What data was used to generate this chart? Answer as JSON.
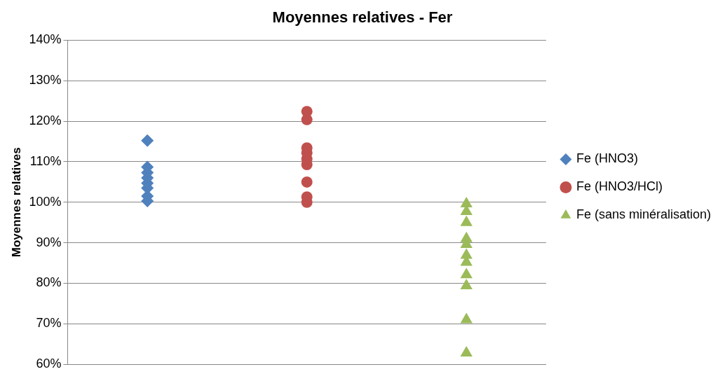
{
  "chart_data": {
    "type": "scatter",
    "title": "Moyennes relatives - Fer",
    "ylabel": "Moyennes relatives",
    "categories": [
      null,
      null,
      null
    ],
    "ylim": [
      0.6,
      1.4
    ],
    "yticks": [
      {
        "value": 0.6,
        "label": "60%"
      },
      {
        "value": 0.7,
        "label": "70%"
      },
      {
        "value": 0.8,
        "label": "80%"
      },
      {
        "value": 0.9,
        "label": "90%"
      },
      {
        "value": 1.0,
        "label": "100%"
      },
      {
        "value": 1.1,
        "label": "110%"
      },
      {
        "value": 1.2,
        "label": "120%"
      },
      {
        "value": 1.3,
        "label": "130%"
      },
      {
        "value": 1.4,
        "label": "140%"
      }
    ],
    "tick_labels": "y",
    "grid": "y",
    "legend": "right",
    "series": [
      {
        "name": "Fe (HNO3)",
        "color": "#4f81bd",
        "marker": "diamond",
        "values": [
          1.152,
          null,
          null
        ]
      },
      {
        "color": "#4f81bd",
        "marker": "diamond",
        "values": [
          1.087,
          null,
          null
        ]
      },
      {
        "color": "#4f81bd",
        "marker": "diamond",
        "values": [
          1.073,
          null,
          null
        ]
      },
      {
        "color": "#4f81bd",
        "marker": "diamond",
        "values": [
          1.06,
          null,
          null
        ]
      },
      {
        "color": "#4f81bd",
        "marker": "diamond",
        "values": [
          1.047,
          null,
          null
        ]
      },
      {
        "color": "#4f81bd",
        "marker": "diamond",
        "values": [
          1.035,
          null,
          null
        ]
      },
      {
        "color": "#4f81bd",
        "marker": "diamond",
        "values": [
          1.015,
          null,
          null
        ]
      },
      {
        "color": "#4f81bd",
        "marker": "diamond",
        "values": [
          1.003,
          null,
          null
        ]
      },
      {
        "name": "Fe (HNO3/HCl)",
        "color": "#c0504d",
        "marker": "circle",
        "values": [
          null,
          1.224,
          null
        ]
      },
      {
        "color": "#c0504d",
        "marker": "circle",
        "values": [
          null,
          1.204,
          null
        ]
      },
      {
        "color": "#c0504d",
        "marker": "circle",
        "values": [
          null,
          1.134,
          null
        ]
      },
      {
        "color": "#c0504d",
        "marker": "circle",
        "values": [
          null,
          1.122,
          null
        ]
      },
      {
        "color": "#c0504d",
        "marker": "circle",
        "values": [
          null,
          1.107,
          null
        ]
      },
      {
        "color": "#c0504d",
        "marker": "circle",
        "values": [
          null,
          1.093,
          null
        ]
      },
      {
        "color": "#c0504d",
        "marker": "circle",
        "values": [
          null,
          1.05,
          null
        ]
      },
      {
        "color": "#c0504d",
        "marker": "circle",
        "values": [
          null,
          1.013,
          null
        ]
      },
      {
        "color": "#c0504d",
        "marker": "circle",
        "values": [
          null,
          1.0,
          null
        ]
      },
      {
        "name": "Fe (sans minéralisation)",
        "color": "#9bbb59",
        "marker": "triangle",
        "values": [
          null,
          null,
          0.996
        ]
      },
      {
        "color": "#9bbb59",
        "marker": "triangle",
        "values": [
          null,
          null,
          0.977
        ]
      },
      {
        "color": "#9bbb59",
        "marker": "triangle",
        "values": [
          null,
          null,
          0.95
        ]
      },
      {
        "color": "#9bbb59",
        "marker": "triangle",
        "values": [
          null,
          null,
          0.91
        ]
      },
      {
        "color": "#9bbb59",
        "marker": "triangle",
        "values": [
          null,
          null,
          0.896
        ]
      },
      {
        "color": "#9bbb59",
        "marker": "triangle",
        "values": [
          null,
          null,
          0.869
        ]
      },
      {
        "color": "#9bbb59",
        "marker": "triangle",
        "values": [
          null,
          null,
          0.852
        ]
      },
      {
        "color": "#9bbb59",
        "marker": "triangle",
        "values": [
          null,
          null,
          0.821
        ]
      },
      {
        "color": "#9bbb59",
        "marker": "triangle",
        "values": [
          null,
          null,
          0.794
        ]
      },
      {
        "color": "#9bbb59",
        "marker": "triangle",
        "values": [
          null,
          null,
          0.71
        ]
      },
      {
        "color": "#9bbb59",
        "marker": "triangle",
        "values": [
          null,
          null,
          0.628
        ]
      }
    ]
  }
}
